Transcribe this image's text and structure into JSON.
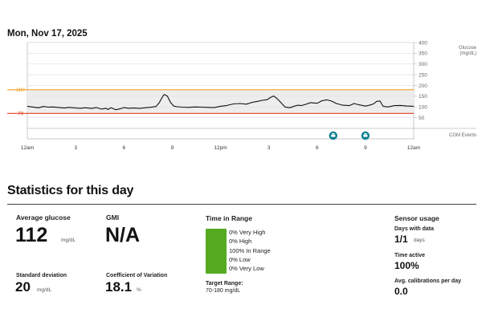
{
  "header": {
    "date": "Mon, Nov 17, 2025"
  },
  "chart_data": {
    "type": "line",
    "title": "",
    "ylabel": "Glucose\n(mg/dL)",
    "ylabel_line1": "Glucose",
    "ylabel_line2": "(mg/dL)",
    "ylim": [
      0,
      400
    ],
    "y_ticks": [
      50,
      100,
      150,
      200,
      250,
      300,
      350,
      400
    ],
    "target_range": {
      "high": 180,
      "low": 70,
      "high_color": "#f0a020",
      "low_color": "#e04020",
      "high_label": "180",
      "low_label": "70"
    },
    "x_ticks": [
      "12am",
      "3",
      "6",
      "9",
      "12pm",
      "3",
      "6",
      "9",
      "12am"
    ],
    "xlim_hours": [
      0,
      24
    ],
    "events_label": "CGM Events",
    "events": [
      {
        "hour": 19.0,
        "icon": "meal-icon"
      },
      {
        "hour": 21.0,
        "icon": "meal-icon"
      }
    ],
    "series": [
      {
        "color": "#111111",
        "x": [
          0.0,
          0.3,
          0.7,
          1.0,
          1.3,
          1.6,
          2.0,
          2.3,
          2.6,
          3.0,
          3.3,
          3.6,
          4.0,
          4.3,
          4.6,
          4.9,
          5.0,
          5.2,
          5.5,
          5.8,
          6.0,
          6.3,
          6.6,
          7.0,
          7.3,
          7.6,
          8.0,
          8.2,
          8.4,
          8.5,
          8.7,
          8.9,
          9.1,
          9.3,
          9.6,
          10.0,
          10.4,
          10.8,
          11.2,
          11.6,
          12.0,
          12.4,
          12.8,
          13.2,
          13.6,
          14.0,
          14.3,
          14.6,
          14.9,
          15.1,
          15.3,
          15.5,
          15.7,
          16.0,
          16.3,
          16.6,
          16.8,
          17.0,
          17.3,
          17.6,
          18.0,
          18.3,
          18.6,
          18.9,
          19.2,
          19.6,
          20.0,
          20.3,
          20.6,
          21.0,
          21.3,
          21.5,
          21.7,
          21.9,
          22.1,
          22.4,
          22.8,
          23.2,
          23.6,
          24.0
        ],
        "y": [
          103,
          100,
          96,
          102,
          99,
          100,
          97,
          95,
          98,
          95,
          94,
          96,
          93,
          97,
          90,
          94,
          88,
          96,
          87,
          92,
          97,
          94,
          95,
          93,
          96,
          98,
          102,
          120,
          148,
          158,
          150,
          120,
          104,
          101,
          99,
          98,
          100,
          99,
          98,
          97,
          103,
          107,
          114,
          116,
          113,
          122,
          126,
          131,
          134,
          144,
          151,
          140,
          124,
          100,
          96,
          104,
          108,
          106,
          112,
          120,
          117,
          129,
          133,
          127,
          116,
          108,
          106,
          116,
          110,
          104,
          109,
          114,
          126,
          128,
          103,
          100,
          106,
          107,
          104,
          103
        ]
      }
    ]
  },
  "stats": {
    "title": "Statistics for this day",
    "avg_glucose": {
      "label": "Average glucose",
      "value": "112",
      "unit": "mg/dL"
    },
    "gmi": {
      "label": "GMI",
      "value": "N/A"
    },
    "sd": {
      "label": "Standard deviation",
      "value": "20",
      "unit": "mg/dL"
    },
    "cv": {
      "label": "Coefficient of Variation",
      "value": "18.1",
      "unit": "%"
    },
    "time_in_range": {
      "label": "Time in Range",
      "bar_color": "#55aa22",
      "in_range_fraction": 1.0,
      "rows": [
        "0% Very High",
        "0% High",
        "100% In Range",
        "0% Low",
        "0% Very Low"
      ],
      "target_label": "Target Range:",
      "target_value": "70-180 mg/dL"
    },
    "sensor": {
      "label": "Sensor usage",
      "days_label": "Days with data",
      "days_value": "1/1",
      "days_unit": "days",
      "active_label": "Time active",
      "active_value": "100%",
      "calib_label": "Avg. calibrations per day",
      "calib_value": "0.0"
    }
  }
}
